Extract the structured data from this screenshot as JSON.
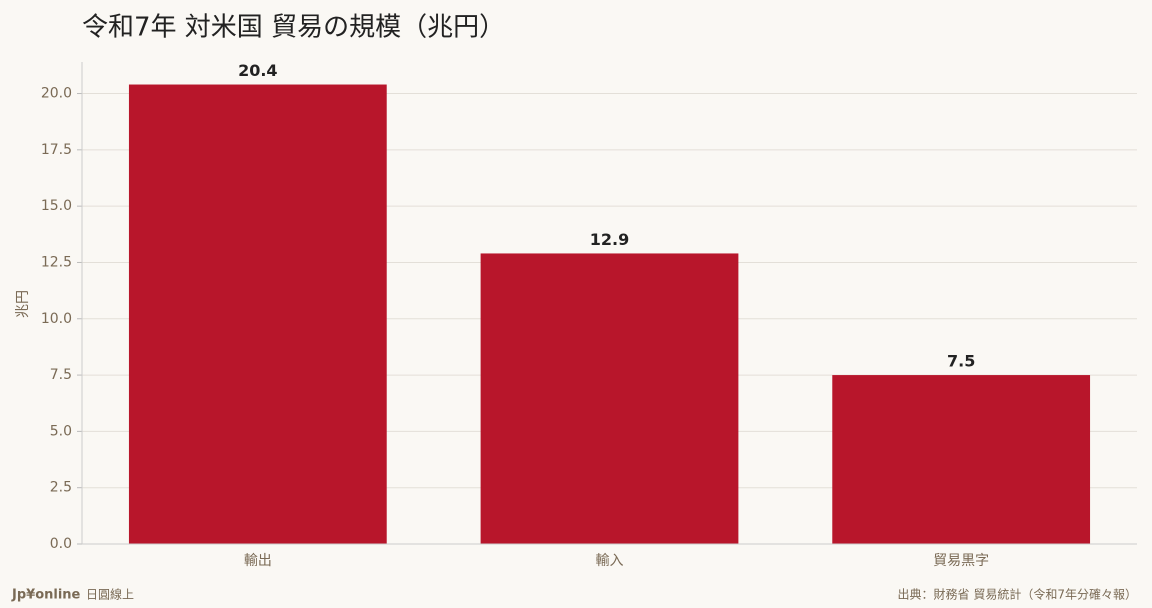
{
  "chart_data": {
    "type": "bar",
    "title": "令和7年 対米国 貿易の規模（兆円）",
    "ylabel": "兆円",
    "categories": [
      "輸出",
      "輸入",
      "貿易黒字"
    ],
    "values": [
      20.4,
      12.9,
      7.5
    ],
    "color": "#b8162b",
    "ylim": [
      0,
      21.4
    ],
    "yticks": [
      {
        "value": 0,
        "label": "0.0"
      },
      {
        "value": 2.5,
        "label": "2.5"
      },
      {
        "value": 5,
        "label": "5.0"
      },
      {
        "value": 7.5,
        "label": "7.5"
      },
      {
        "value": 10,
        "label": "10.0"
      },
      {
        "value": 12.5,
        "label": "12.5"
      },
      {
        "value": 15,
        "label": "15.0"
      },
      {
        "value": 17.5,
        "label": "17.5"
      },
      {
        "value": 20,
        "label": "20.0"
      }
    ],
    "grid": true
  },
  "footer": {
    "brand": "Jp¥online",
    "tagline": "日圓線上",
    "source": "出典：財務省 貿易統計（令和7年分確々報）"
  }
}
